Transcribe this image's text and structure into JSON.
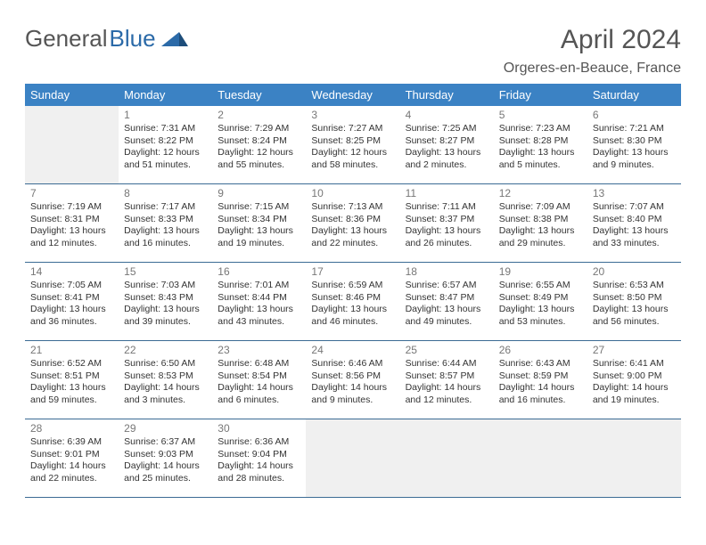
{
  "logo": {
    "general": "General",
    "blue": "Blue"
  },
  "title": "April 2024",
  "location": "Orgeres-en-Beauce, France",
  "colors": {
    "header_bg": "#3b82c4",
    "header_text": "#ffffff",
    "row_border": "#3b6b94",
    "logo_gray": "#555555",
    "logo_blue": "#2b6aa8",
    "empty_bg": "#f0f0f0",
    "page_bg": "#ffffff"
  },
  "day_headers": [
    "Sunday",
    "Monday",
    "Tuesday",
    "Wednesday",
    "Thursday",
    "Friday",
    "Saturday"
  ],
  "weeks": [
    [
      null,
      {
        "n": "1",
        "sr": "7:31 AM",
        "ss": "8:22 PM",
        "dl": "12 hours and 51 minutes."
      },
      {
        "n": "2",
        "sr": "7:29 AM",
        "ss": "8:24 PM",
        "dl": "12 hours and 55 minutes."
      },
      {
        "n": "3",
        "sr": "7:27 AM",
        "ss": "8:25 PM",
        "dl": "12 hours and 58 minutes."
      },
      {
        "n": "4",
        "sr": "7:25 AM",
        "ss": "8:27 PM",
        "dl": "13 hours and 2 minutes."
      },
      {
        "n": "5",
        "sr": "7:23 AM",
        "ss": "8:28 PM",
        "dl": "13 hours and 5 minutes."
      },
      {
        "n": "6",
        "sr": "7:21 AM",
        "ss": "8:30 PM",
        "dl": "13 hours and 9 minutes."
      }
    ],
    [
      {
        "n": "7",
        "sr": "7:19 AM",
        "ss": "8:31 PM",
        "dl": "13 hours and 12 minutes."
      },
      {
        "n": "8",
        "sr": "7:17 AM",
        "ss": "8:33 PM",
        "dl": "13 hours and 16 minutes."
      },
      {
        "n": "9",
        "sr": "7:15 AM",
        "ss": "8:34 PM",
        "dl": "13 hours and 19 minutes."
      },
      {
        "n": "10",
        "sr": "7:13 AM",
        "ss": "8:36 PM",
        "dl": "13 hours and 22 minutes."
      },
      {
        "n": "11",
        "sr": "7:11 AM",
        "ss": "8:37 PM",
        "dl": "13 hours and 26 minutes."
      },
      {
        "n": "12",
        "sr": "7:09 AM",
        "ss": "8:38 PM",
        "dl": "13 hours and 29 minutes."
      },
      {
        "n": "13",
        "sr": "7:07 AM",
        "ss": "8:40 PM",
        "dl": "13 hours and 33 minutes."
      }
    ],
    [
      {
        "n": "14",
        "sr": "7:05 AM",
        "ss": "8:41 PM",
        "dl": "13 hours and 36 minutes."
      },
      {
        "n": "15",
        "sr": "7:03 AM",
        "ss": "8:43 PM",
        "dl": "13 hours and 39 minutes."
      },
      {
        "n": "16",
        "sr": "7:01 AM",
        "ss": "8:44 PM",
        "dl": "13 hours and 43 minutes."
      },
      {
        "n": "17",
        "sr": "6:59 AM",
        "ss": "8:46 PM",
        "dl": "13 hours and 46 minutes."
      },
      {
        "n": "18",
        "sr": "6:57 AM",
        "ss": "8:47 PM",
        "dl": "13 hours and 49 minutes."
      },
      {
        "n": "19",
        "sr": "6:55 AM",
        "ss": "8:49 PM",
        "dl": "13 hours and 53 minutes."
      },
      {
        "n": "20",
        "sr": "6:53 AM",
        "ss": "8:50 PM",
        "dl": "13 hours and 56 minutes."
      }
    ],
    [
      {
        "n": "21",
        "sr": "6:52 AM",
        "ss": "8:51 PM",
        "dl": "13 hours and 59 minutes."
      },
      {
        "n": "22",
        "sr": "6:50 AM",
        "ss": "8:53 PM",
        "dl": "14 hours and 3 minutes."
      },
      {
        "n": "23",
        "sr": "6:48 AM",
        "ss": "8:54 PM",
        "dl": "14 hours and 6 minutes."
      },
      {
        "n": "24",
        "sr": "6:46 AM",
        "ss": "8:56 PM",
        "dl": "14 hours and 9 minutes."
      },
      {
        "n": "25",
        "sr": "6:44 AM",
        "ss": "8:57 PM",
        "dl": "14 hours and 12 minutes."
      },
      {
        "n": "26",
        "sr": "6:43 AM",
        "ss": "8:59 PM",
        "dl": "14 hours and 16 minutes."
      },
      {
        "n": "27",
        "sr": "6:41 AM",
        "ss": "9:00 PM",
        "dl": "14 hours and 19 minutes."
      }
    ],
    [
      {
        "n": "28",
        "sr": "6:39 AM",
        "ss": "9:01 PM",
        "dl": "14 hours and 22 minutes."
      },
      {
        "n": "29",
        "sr": "6:37 AM",
        "ss": "9:03 PM",
        "dl": "14 hours and 25 minutes."
      },
      {
        "n": "30",
        "sr": "6:36 AM",
        "ss": "9:04 PM",
        "dl": "14 hours and 28 minutes."
      },
      null,
      null,
      null,
      null
    ]
  ],
  "labels": {
    "sunrise": "Sunrise: ",
    "sunset": "Sunset: ",
    "daylight": "Daylight: "
  }
}
